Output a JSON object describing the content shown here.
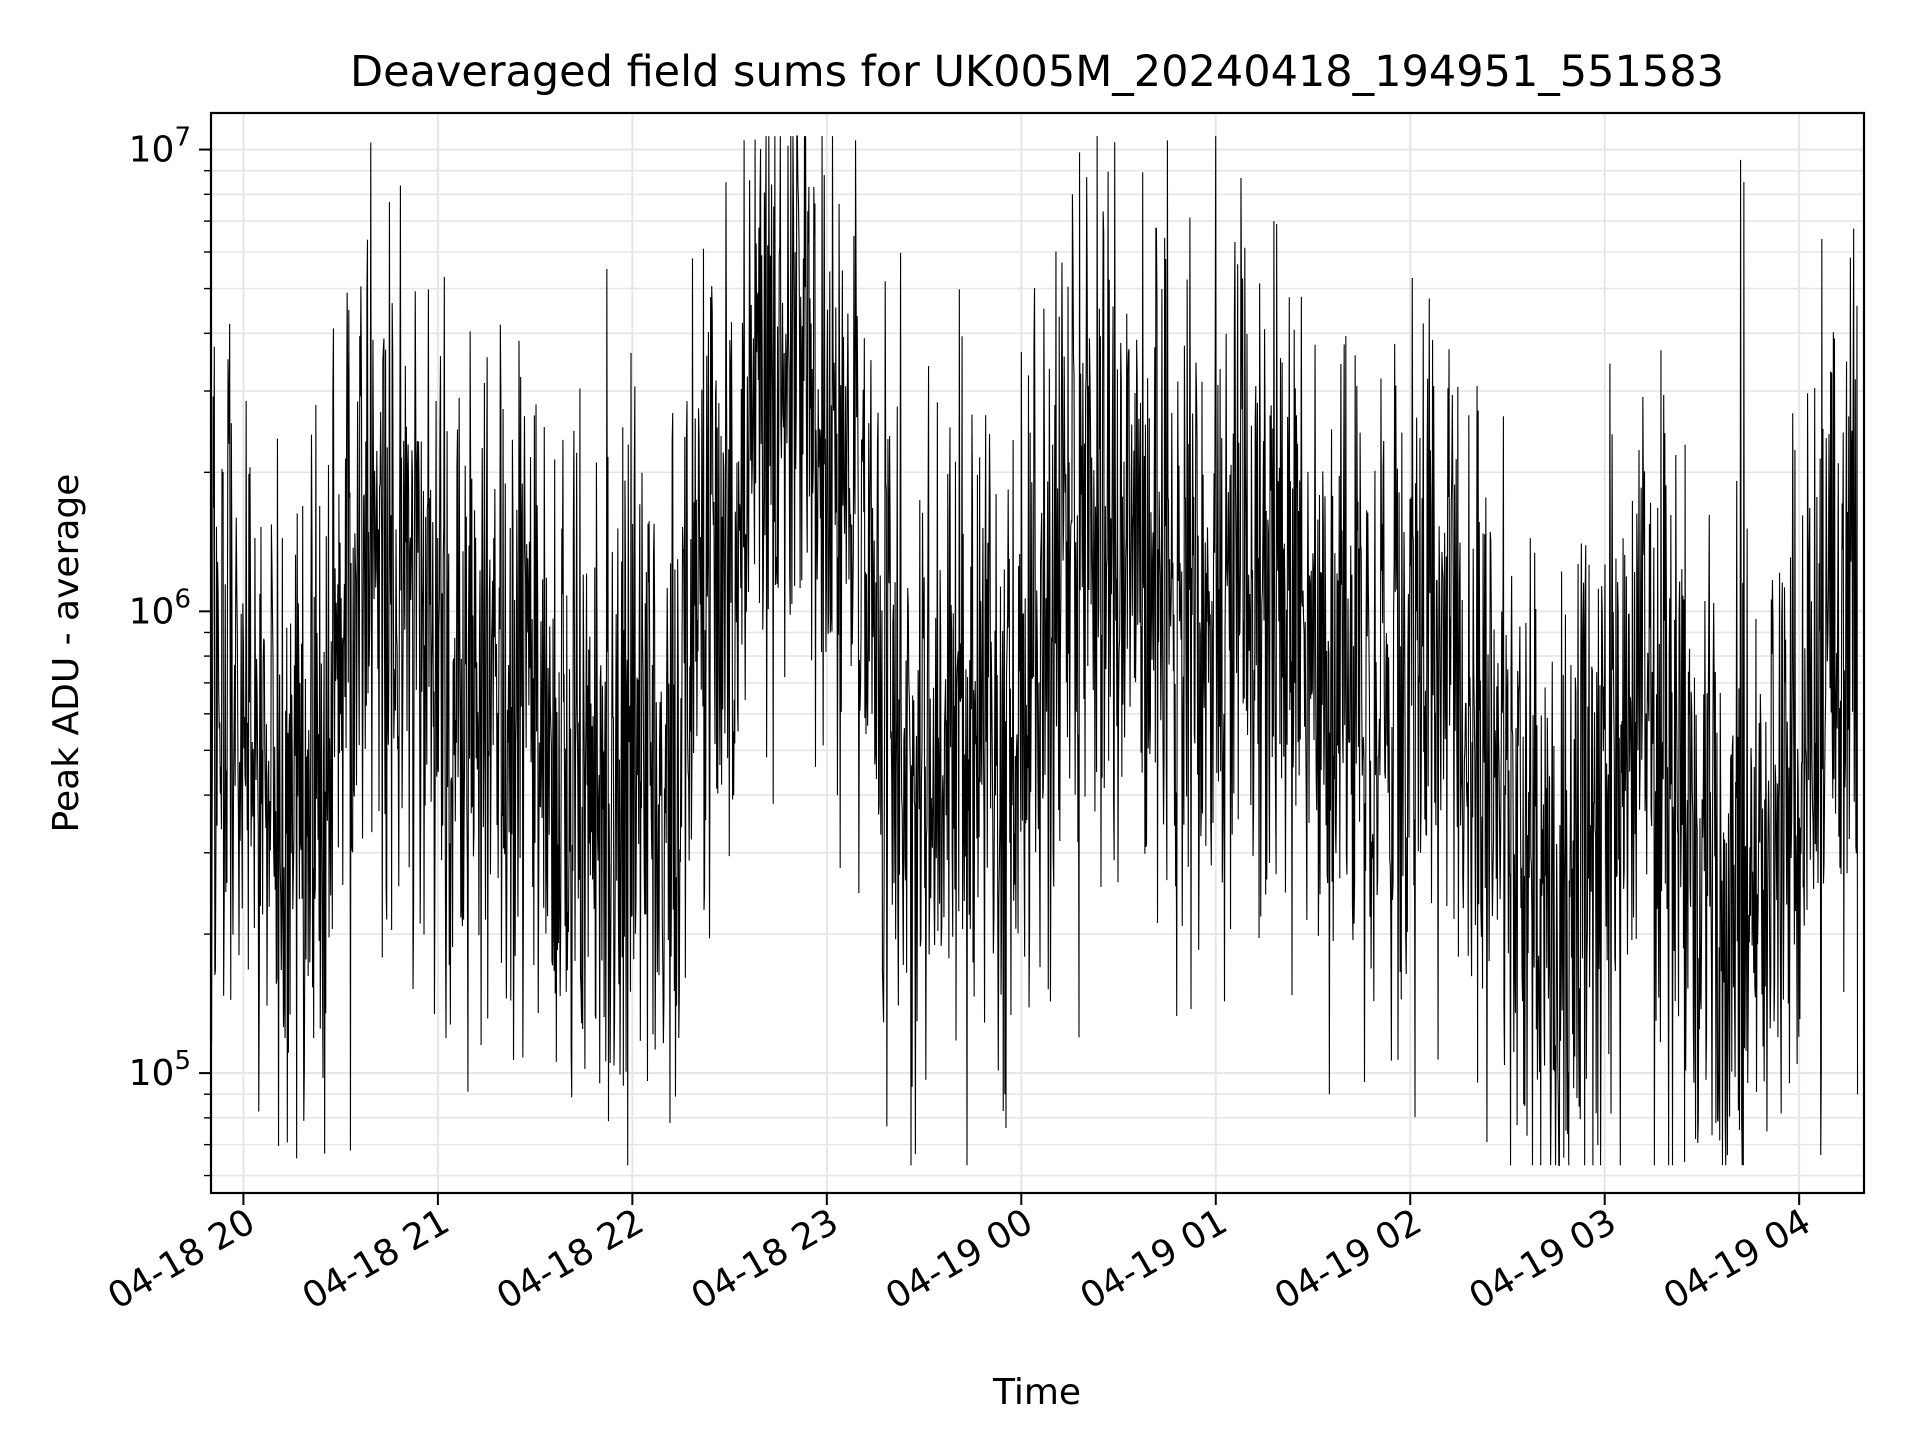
{
  "chart_data": {
    "type": "line",
    "title": "Deaveraged field sums for UK005M_20240418_194951_551583",
    "xlabel": "Time",
    "ylabel": "Peak ADU - average",
    "yscale": "log",
    "ylim": [
      55000,
      12000000
    ],
    "xlim": [
      "2024-04-18 19:50",
      "2024-04-19 04:20"
    ],
    "grid": true,
    "line_color": "#000000",
    "x_ticks": [
      {
        "at": "2024-04-18 20:00",
        "label": "04-18 20"
      },
      {
        "at": "2024-04-18 21:00",
        "label": "04-18 21"
      },
      {
        "at": "2024-04-18 22:00",
        "label": "04-18 22"
      },
      {
        "at": "2024-04-18 23:00",
        "label": "04-18 23"
      },
      {
        "at": "2024-04-19 00:00",
        "label": "04-19 00"
      },
      {
        "at": "2024-04-19 01:00",
        "label": "04-19 01"
      },
      {
        "at": "2024-04-19 02:00",
        "label": "04-19 02"
      },
      {
        "at": "2024-04-19 03:00",
        "label": "04-19 03"
      },
      {
        "at": "2024-04-19 04:00",
        "label": "04-19 04"
      }
    ],
    "y_ticks": [
      {
        "value": 100000,
        "base": "10",
        "exp": "5"
      },
      {
        "value": 1000000,
        "base": "10",
        "exp": "6"
      },
      {
        "value": 10000000,
        "base": "10",
        "exp": "7"
      }
    ],
    "series": [
      {
        "x": [
          "2024-04-18 19:50",
          "2024-04-18 20:00",
          "2024-04-18 20:10",
          "2024-04-18 20:20",
          "2024-04-18 20:30",
          "2024-04-18 20:40",
          "2024-04-18 20:50",
          "2024-04-18 21:00",
          "2024-04-18 21:10",
          "2024-04-18 21:20",
          "2024-04-18 21:30",
          "2024-04-18 21:40",
          "2024-04-18 21:50",
          "2024-04-18 22:00",
          "2024-04-18 22:10",
          "2024-04-18 22:20",
          "2024-04-18 22:30",
          "2024-04-18 22:40",
          "2024-04-18 22:50",
          "2024-04-18 23:00",
          "2024-04-18 23:10",
          "2024-04-18 23:20",
          "2024-04-18 23:30",
          "2024-04-18 23:40",
          "2024-04-18 23:50",
          "2024-04-19 00:00",
          "2024-04-19 00:10",
          "2024-04-19 00:20",
          "2024-04-19 00:30",
          "2024-04-19 00:40",
          "2024-04-19 00:50",
          "2024-04-19 01:00",
          "2024-04-19 01:10",
          "2024-04-19 01:20",
          "2024-04-19 01:30",
          "2024-04-19 01:40",
          "2024-04-19 01:50",
          "2024-04-19 02:00",
          "2024-04-19 02:10",
          "2024-04-19 02:20",
          "2024-04-19 02:30",
          "2024-04-19 02:40",
          "2024-04-19 02:50",
          "2024-04-19 03:00",
          "2024-04-19 03:10",
          "2024-04-19 03:20",
          "2024-04-19 03:30",
          "2024-04-19 03:40",
          "2024-04-19 03:50",
          "2024-04-19 04:00",
          "2024-04-19 04:10",
          "2024-04-19 04:18"
        ],
        "y": [
          800000,
          650000,
          350000,
          280000,
          900000,
          1200000,
          1000000,
          800000,
          700000,
          650000,
          550000,
          450000,
          450000,
          500000,
          550000,
          800000,
          1100000,
          2500000,
          3000000,
          2800000,
          1200000,
          600000,
          450000,
          500000,
          550000,
          700000,
          1000000,
          1500000,
          1400000,
          1200000,
          1100000,
          1000000,
          1100000,
          1000000,
          900000,
          800000,
          750000,
          700000,
          650000,
          550000,
          400000,
          280000,
          220000,
          400000,
          550000,
          600000,
          250000,
          220000,
          260000,
          450000,
          900000,
          1000000
        ],
        "noise_decades": 0.38,
        "spikes": [
          {
            "x": "2024-04-18 20:32",
            "y": 4900000
          },
          {
            "x": "2024-04-18 20:33",
            "y": 68000
          },
          {
            "x": "2024-04-18 21:02",
            "y": 5300000
          },
          {
            "x": "2024-04-18 21:50",
            "y": 95000
          },
          {
            "x": "2024-04-18 22:22",
            "y": 6100000
          },
          {
            "x": "2024-04-18 22:43",
            "y": 8400000
          },
          {
            "x": "2024-04-18 22:56",
            "y": 8300000
          },
          {
            "x": "2024-04-18 23:55",
            "y": 90000
          },
          {
            "x": "2024-04-19 01:18",
            "y": 7000000
          },
          {
            "x": "2024-04-19 01:35",
            "y": 90000
          },
          {
            "x": "2024-04-19 02:04",
            "y": 4200000
          },
          {
            "x": "2024-04-19 02:48",
            "y": 75000
          },
          {
            "x": "2024-04-19 03:28",
            "y": 72000
          },
          {
            "x": "2024-04-19 03:42",
            "y": 9500000
          },
          {
            "x": "2024-04-19 03:43",
            "y": 8500000
          },
          {
            "x": "2024-04-19 04:07",
            "y": 6400000
          },
          {
            "x": "2024-04-19 04:18",
            "y": 90000
          }
        ]
      }
    ]
  }
}
